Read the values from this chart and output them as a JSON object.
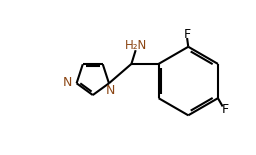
{
  "bg_color": "#ffffff",
  "bond_color": "#000000",
  "label_color_N": "#8B4513",
  "label_color_F": "#000000",
  "label_color_NH2": "#8B4513",
  "line_width": 1.5,
  "figsize": [
    2.56,
    1.55
  ],
  "dpi": 100,
  "xlim": [
    0,
    10
  ],
  "ylim": [
    0,
    6.5
  ]
}
